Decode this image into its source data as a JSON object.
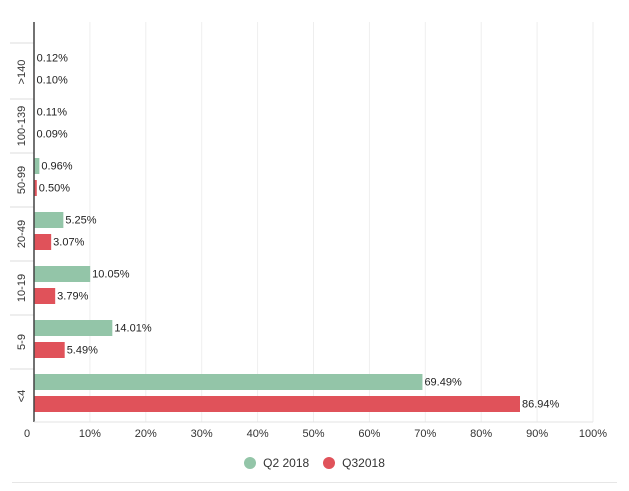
{
  "chart_data": {
    "type": "bar",
    "orientation": "horizontal",
    "categories": [
      ">140",
      "100-139",
      "50-99",
      "20-49",
      "10-19",
      "5-9",
      "<4"
    ],
    "series": [
      {
        "name": "Q2 2018",
        "color": "#93c5a8",
        "values": [
          0.12,
          0.11,
          0.96,
          5.25,
          10.05,
          14.01,
          69.49
        ],
        "labels": [
          "0.12%",
          "0.11%",
          "0.96%",
          "5.25%",
          "10.05%",
          "14.01%",
          "69.49%"
        ]
      },
      {
        "name": "Q32018",
        "color": "#e0525a",
        "values": [
          0.1,
          0.09,
          0.5,
          3.07,
          3.79,
          5.49,
          86.94
        ],
        "labels": [
          "0.10%",
          "0.09%",
          "0.50%",
          "3.07%",
          "3.79%",
          "5.49%",
          "86.94%"
        ]
      }
    ],
    "xlim": [
      0,
      100
    ],
    "x_ticks": [
      0,
      10,
      20,
      30,
      40,
      50,
      60,
      70,
      80,
      90,
      100
    ],
    "x_tick_labels": [
      "0",
      "10%",
      "20%",
      "30%",
      "40%",
      "50%",
      "60%",
      "70%",
      "80%",
      "90%",
      "100%"
    ],
    "grid": true,
    "legend_position": "bottom",
    "title": "",
    "xlabel": "",
    "ylabel": ""
  }
}
